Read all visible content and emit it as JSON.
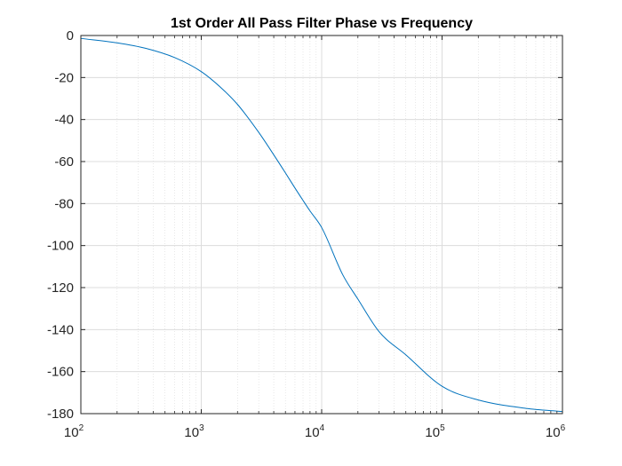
{
  "chart_data": {
    "type": "line",
    "title": "1st Order All Pass Filter Phase vs Frequency",
    "xlabel": "",
    "ylabel": "",
    "xscale": "log",
    "xlim": [
      100,
      1000000
    ],
    "ylim": [
      -180,
      0
    ],
    "grid": true,
    "minor_grid_x": true,
    "line_color": "#0072BD",
    "x_ticks": [
      {
        "base": "10",
        "exp": "2",
        "value": 100
      },
      {
        "base": "10",
        "exp": "3",
        "value": 1000
      },
      {
        "base": "10",
        "exp": "4",
        "value": 10000
      },
      {
        "base": "10",
        "exp": "5",
        "value": 100000
      },
      {
        "base": "10",
        "exp": "6",
        "value": 1000000
      }
    ],
    "y_ticks": [
      {
        "label": "0",
        "value": 0
      },
      {
        "label": "-20",
        "value": -20
      },
      {
        "label": "-40",
        "value": -40
      },
      {
        "label": "-60",
        "value": -60
      },
      {
        "label": "-80",
        "value": -80
      },
      {
        "label": "-100",
        "value": -100
      },
      {
        "label": "-120",
        "value": -120
      },
      {
        "label": "-140",
        "value": -140
      },
      {
        "label": "-160",
        "value": -160
      },
      {
        "label": "-180",
        "value": -180
      }
    ],
    "series": [
      {
        "x": [
          100,
          200,
          350,
          600,
          1000,
          1500,
          2000,
          3000,
          4000,
          5000,
          6000,
          7000,
          8000,
          10000,
          15000,
          20000,
          30000,
          50000,
          100000,
          200000,
          500000,
          1000000
        ],
        "y": [
          -1.4,
          -3.5,
          -6.2,
          -10.5,
          -17.2,
          -25.5,
          -32.8,
          -46.1,
          -56.8,
          -65.4,
          -72.6,
          -78.5,
          -83.5,
          -91.4,
          -114.0,
          -125.5,
          -141.0,
          -152.0,
          -167.0,
          -173.5,
          -177.5,
          -179.0
        ]
      }
    ]
  }
}
